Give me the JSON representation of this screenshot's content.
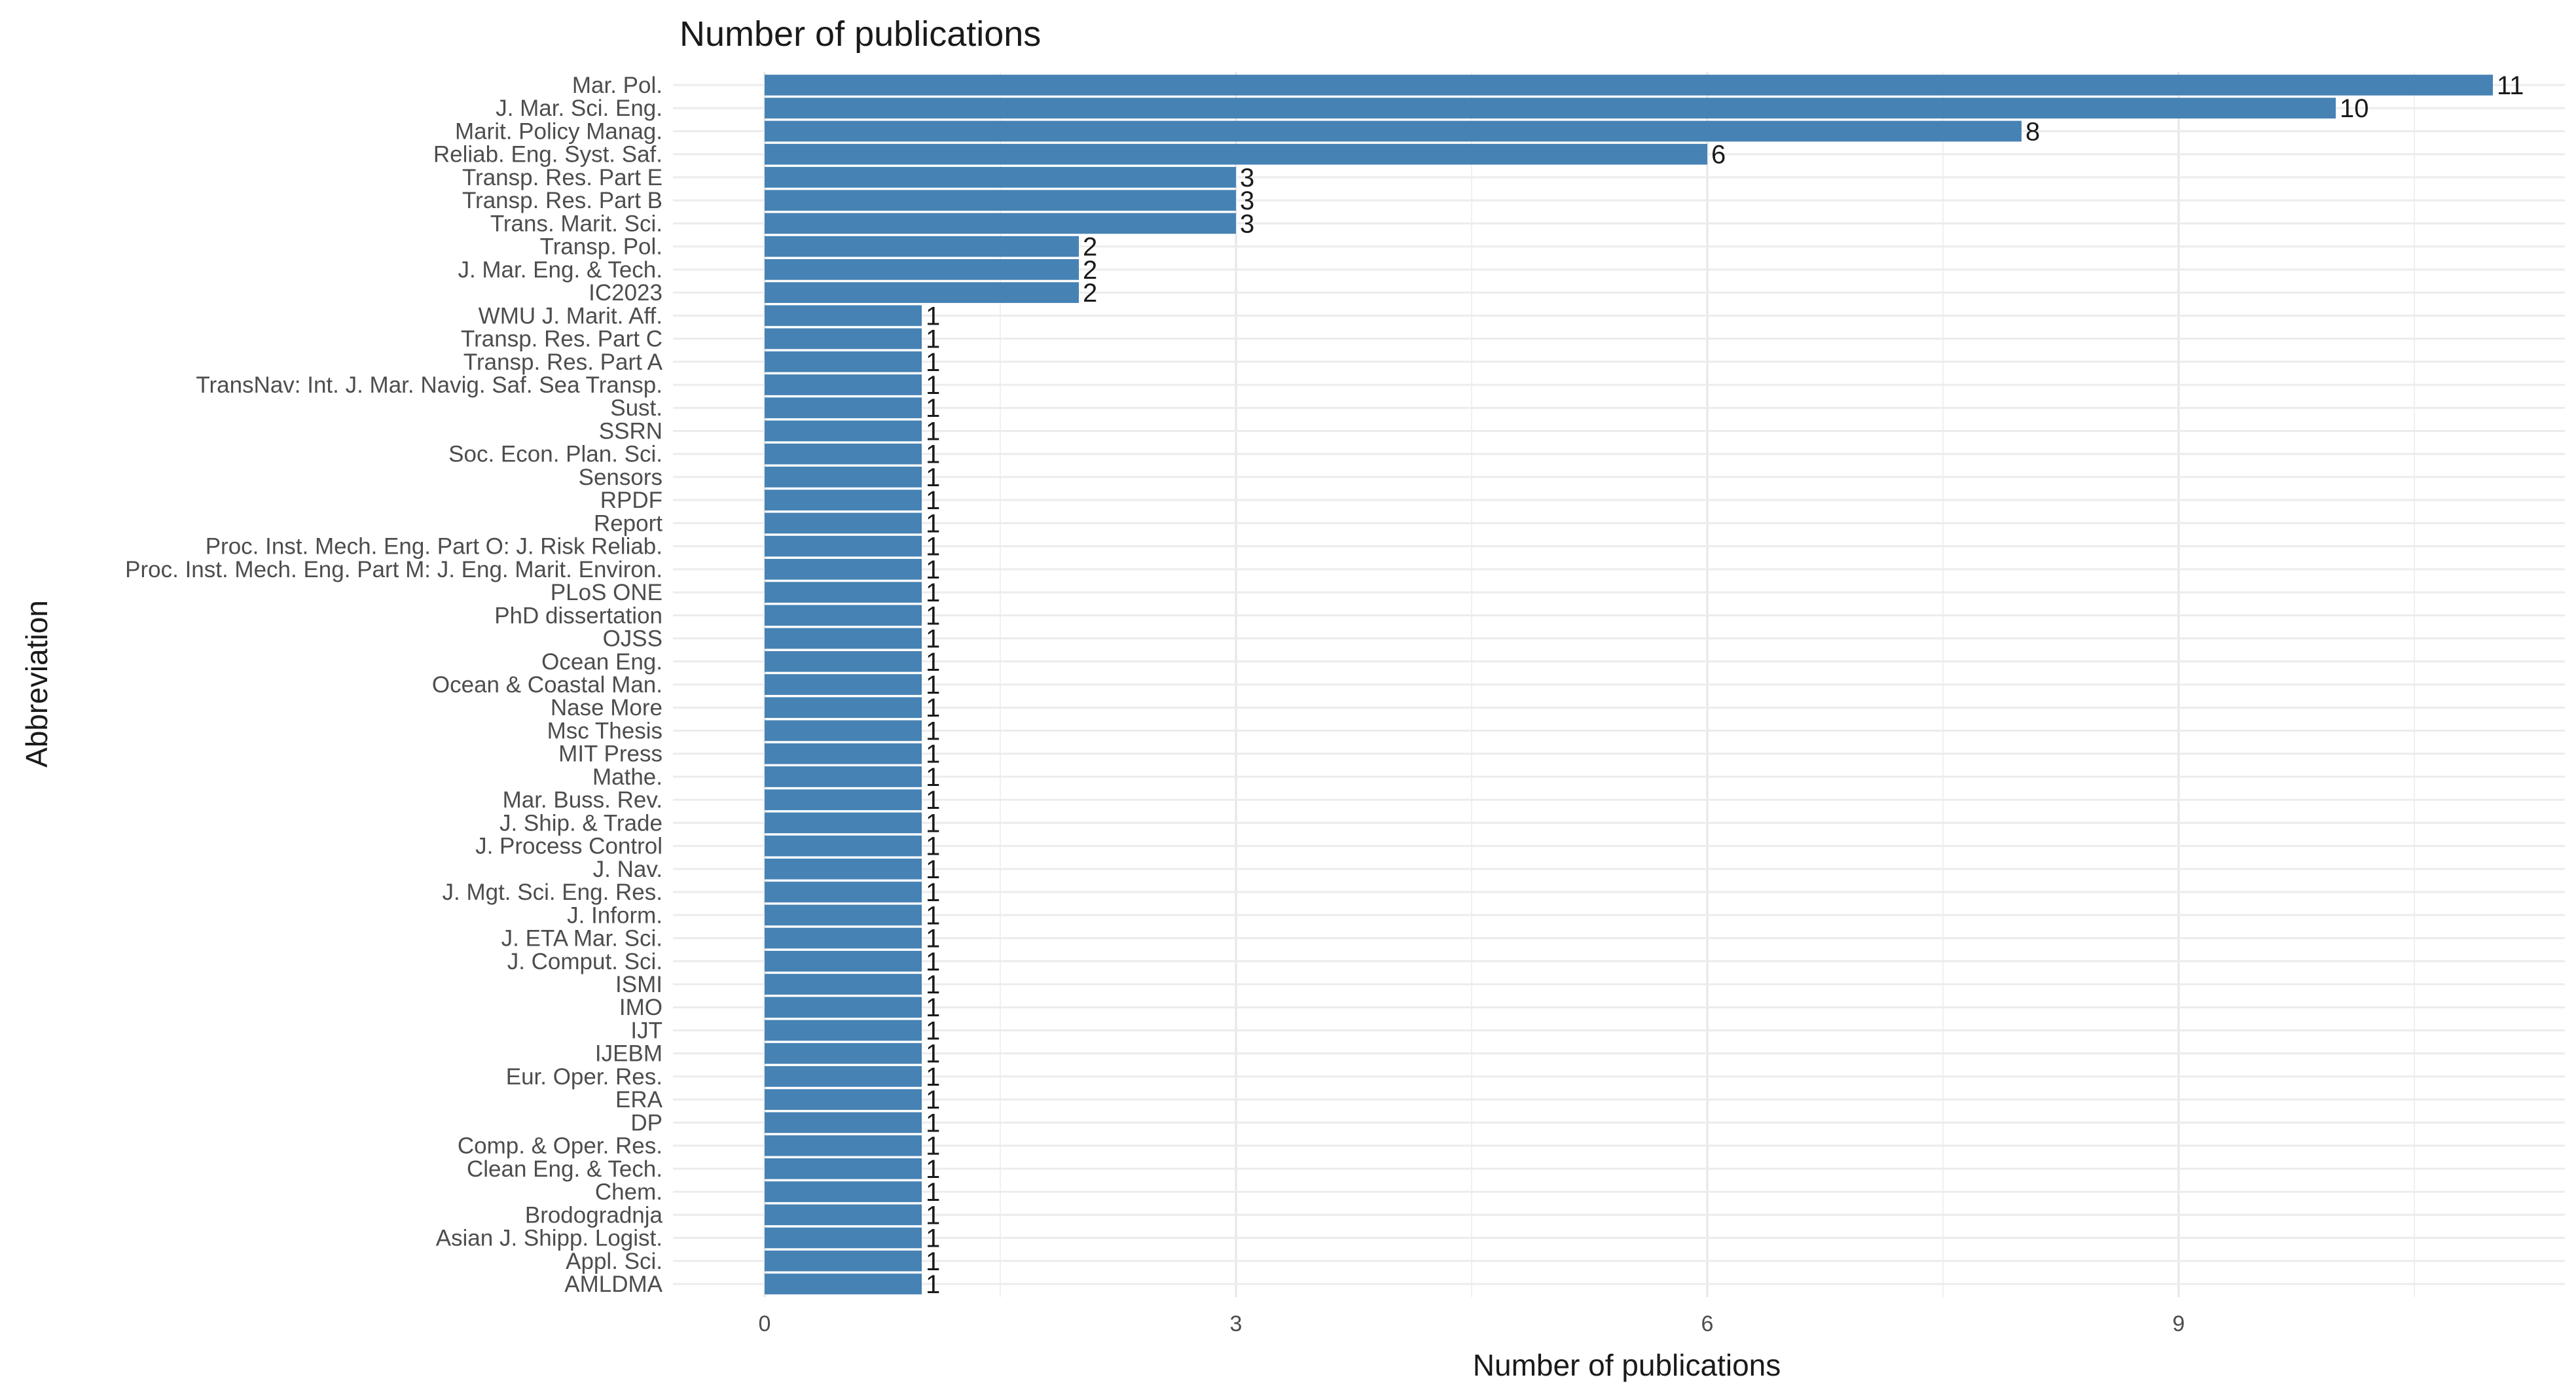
{
  "chart_data": {
    "type": "bar",
    "orientation": "horizontal",
    "title": "Number of publications",
    "xlabel": "Number of publications",
    "ylabel": "Abbreviation",
    "xlim": [
      0,
      11.5
    ],
    "x_ticks": [
      0,
      3,
      6,
      9
    ],
    "grid": true,
    "bar_color": "#4682b4",
    "categories": [
      "Mar. Pol.",
      "J. Mar. Sci. Eng.",
      "Marit. Policy Manag.",
      "Reliab. Eng. Syst. Saf.",
      "Transp. Res. Part E",
      "Transp. Res. Part B",
      "Trans. Marit. Sci.",
      "Transp. Pol.",
      "J. Mar. Eng. & Tech.",
      "IC2023",
      "WMU J. Marit. Aff.",
      "Transp. Res. Part C",
      "Transp. Res. Part A",
      "TransNav: Int. J. Mar. Navig. Saf. Sea Transp.",
      "Sust.",
      "SSRN",
      "Soc. Econ. Plan. Sci.",
      "Sensors",
      "RPDF",
      "Report",
      "Proc. Inst. Mech. Eng. Part O: J. Risk Reliab.",
      "Proc. Inst. Mech. Eng. Part M: J. Eng. Marit. Environ.",
      "PLoS ONE",
      "PhD dissertation",
      "OJSS",
      "Ocean Eng.",
      "Ocean & Coastal Man.",
      "Nase More",
      "Msc Thesis",
      "MIT Press",
      "Mathe.",
      "Mar. Buss. Rev.",
      "J. Ship. & Trade",
      "J. Process Control",
      "J. Nav.",
      "J. Mgt. Sci. Eng. Res.",
      "J. Inform.",
      "J. ETA Mar. Sci.",
      "J. Comput. Sci.",
      "ISMI",
      "IMO",
      "IJT",
      "IJEBM",
      "Eur. Oper. Res.",
      "ERA",
      "DP",
      "Comp. & Oper. Res.",
      "Clean Eng. & Tech.",
      "Chem.",
      "Brodogradnja",
      "Asian J. Shipp. Logist.",
      "Appl. Sci.",
      "AMLDMA"
    ],
    "values": [
      11,
      10,
      8,
      6,
      3,
      3,
      3,
      2,
      2,
      2,
      1,
      1,
      1,
      1,
      1,
      1,
      1,
      1,
      1,
      1,
      1,
      1,
      1,
      1,
      1,
      1,
      1,
      1,
      1,
      1,
      1,
      1,
      1,
      1,
      1,
      1,
      1,
      1,
      1,
      1,
      1,
      1,
      1,
      1,
      1,
      1,
      1,
      1,
      1,
      1,
      1,
      1,
      1
    ]
  }
}
